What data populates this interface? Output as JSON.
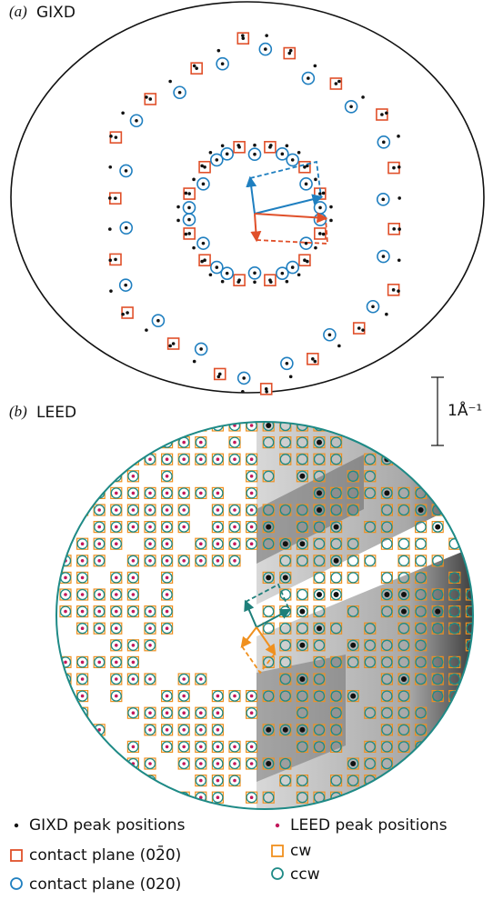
{
  "panel_a": {
    "tag": "(a)",
    "title": "GIXD"
  },
  "panel_b": {
    "tag": "(b)",
    "title": "LEED"
  },
  "scale_bar": "1Å⁻¹",
  "legend": {
    "gixd_peaks": "GIXD peak positions",
    "contact_plane_1": "contact plane (02̄0)",
    "contact_plane_2": "contact plane (020)",
    "leed_peaks": "LEED peak positions",
    "cw": "cw",
    "ccw": "ccw"
  }
}
